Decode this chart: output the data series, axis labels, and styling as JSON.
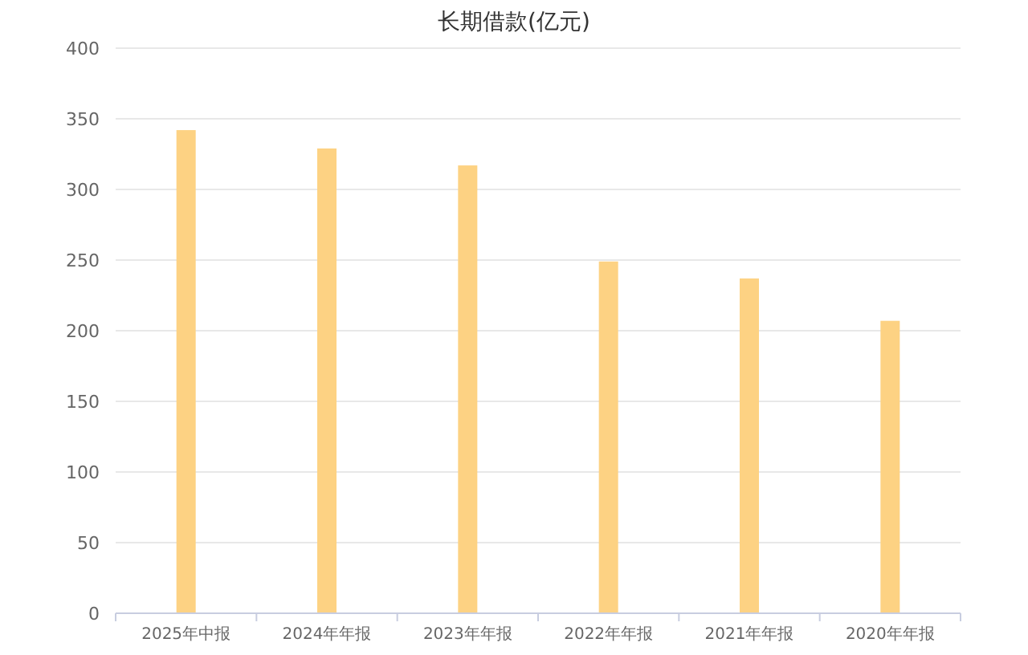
{
  "chart_data": {
    "type": "bar",
    "title": "长期借款(亿元)",
    "categories": [
      "2025年中报",
      "2024年年报",
      "2023年年报",
      "2022年年报",
      "2021年年报",
      "2020年年报"
    ],
    "values": [
      342,
      329,
      317,
      249,
      237,
      207
    ],
    "color": "#fdd283",
    "ylim": [
      0,
      400
    ],
    "yticks": [
      0,
      50,
      100,
      150,
      200,
      250,
      300,
      350,
      400
    ],
    "grid": "y"
  }
}
